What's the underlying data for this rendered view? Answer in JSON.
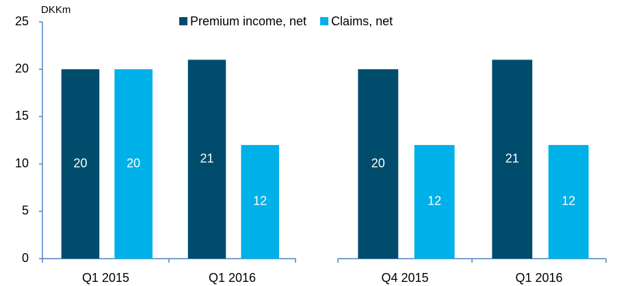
{
  "chart_data": [
    {
      "type": "bar",
      "y_unit": "DKKm",
      "categories": [
        "Q1 2015",
        "Q1 2016"
      ],
      "series": [
        {
          "name": "Premium income, net",
          "color": "#004c6c",
          "values": [
            20,
            21
          ]
        },
        {
          "name": "Claims, net",
          "color": "#00b0e8",
          "values": [
            20,
            12
          ]
        }
      ],
      "ylim": [
        0,
        25
      ],
      "yticks": [
        0,
        5,
        10,
        15,
        20,
        25
      ],
      "legend": "top"
    },
    {
      "type": "bar",
      "categories": [
        "Q4 2015",
        "Q1 2016"
      ],
      "series": [
        {
          "color": "#004c6c",
          "values": [
            20,
            21
          ]
        },
        {
          "color": "#00b0e8",
          "values": [
            12,
            12
          ]
        }
      ],
      "ylim": [
        0,
        25
      ]
    }
  ]
}
